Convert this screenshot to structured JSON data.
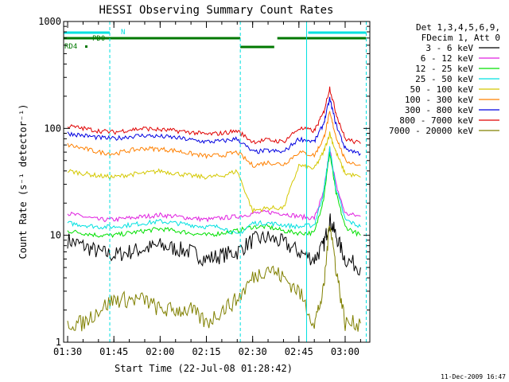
{
  "chart_data": {
    "type": "line",
    "title": "HESSI Observing Summary Count Rates",
    "xlabel": "Start Time (22-Jul-08 01:28:42)",
    "ylabel": "Count Rate (s⁻¹ detector⁻¹)",
    "y_scale": "log",
    "ylim": [
      1,
      1000
    ],
    "xlim": [
      "01:28:42",
      "03:08:00"
    ],
    "x_ticks": [
      "01:30",
      "01:45",
      "02:00",
      "02:15",
      "02:30",
      "02:45",
      "03:00"
    ],
    "y_ticks": [
      "1",
      "10",
      "100",
      "1000"
    ],
    "legend_header": [
      "Det 1,3,4,5,6,9,",
      "FDecim 1, Att 0"
    ],
    "legend_position": "right",
    "footer_date": "11-Dec-2009 16:47",
    "flag_labels": {
      "n": "N",
      "pd0": "PD0",
      "rd4": "RD4"
    },
    "flag_bars": {
      "saa_N_cyan": [
        [
          "01:28:42",
          "01:43:40"
        ],
        [
          "02:48:00",
          "03:06:50"
        ]
      ],
      "green_flags": [
        [
          "01:28:42",
          "02:26:00"
        ],
        [
          "02:26:00",
          "02:37:00"
        ],
        [
          "02:38:00",
          "03:06:50"
        ]
      ]
    },
    "vertical_markers": {
      "solid": [
        "01:28:42",
        "02:47:30"
      ],
      "dashed": [
        "01:43:40",
        "02:26:00",
        "03:06:50"
      ]
    },
    "series": [
      {
        "name": "3 - 6 keV",
        "color": "#000000",
        "x": [
          "01:30",
          "01:35",
          "01:40",
          "01:45",
          "01:50",
          "01:55",
          "02:00",
          "02:05",
          "02:10",
          "02:15",
          "02:20",
          "02:25",
          "02:30",
          "02:35",
          "02:40",
          "02:45",
          "02:50",
          "02:53",
          "02:55",
          "02:57",
          "03:00",
          "03:05"
        ],
        "values": [
          9,
          8,
          7,
          6.5,
          7,
          7.5,
          8,
          7.5,
          7,
          6,
          6.5,
          7,
          9,
          9.5,
          8.5,
          7,
          6,
          8,
          14,
          10,
          6,
          5
        ]
      },
      {
        "name": "6 - 12 keV",
        "color": "#e020e0",
        "x": [
          "01:30",
          "01:35",
          "01:40",
          "01:45",
          "01:50",
          "01:55",
          "02:00",
          "02:05",
          "02:10",
          "02:15",
          "02:20",
          "02:25",
          "02:30",
          "02:35",
          "02:40",
          "02:45",
          "02:50",
          "02:53",
          "02:55",
          "02:57",
          "03:00",
          "03:05"
        ],
        "values": [
          16,
          15,
          14,
          14,
          14.5,
          15,
          15.5,
          15,
          14.5,
          14,
          14.5,
          15,
          16,
          16.5,
          16,
          15,
          14.5,
          25,
          65,
          30,
          16,
          15
        ]
      },
      {
        "name": "12 - 25 keV",
        "color": "#00e000",
        "x": [
          "01:30",
          "01:35",
          "01:40",
          "01:45",
          "01:50",
          "01:55",
          "02:00",
          "02:05",
          "02:10",
          "02:15",
          "02:20",
          "02:25",
          "02:30",
          "02:35",
          "02:40",
          "02:45",
          "02:50",
          "02:53",
          "02:55",
          "02:57",
          "03:00",
          "03:05"
        ],
        "values": [
          11,
          10.5,
          10,
          10,
          10.5,
          11,
          11.5,
          11,
          10.5,
          10,
          10.5,
          11,
          12,
          12,
          11,
          10.5,
          10.5,
          22,
          60,
          25,
          12,
          10
        ]
      },
      {
        "name": "25 - 50 keV",
        "color": "#00e0e0",
        "x": [
          "01:30",
          "01:35",
          "01:40",
          "01:45",
          "01:50",
          "01:55",
          "02:00",
          "02:05",
          "02:10",
          "02:15",
          "02:20",
          "02:25",
          "02:30",
          "02:35",
          "02:40",
          "02:45",
          "02:50",
          "02:53",
          "02:55",
          "02:57",
          "03:00",
          "03:05"
        ],
        "values": [
          13,
          12.5,
          12,
          12,
          12.5,
          13,
          13.5,
          13,
          12.5,
          12,
          12,
          10,
          13,
          13,
          12.5,
          12,
          12.5,
          25,
          65,
          28,
          14,
          12
        ]
      },
      {
        "name": "50 - 100 keV",
        "color": "#d4c800",
        "x": [
          "01:30",
          "01:35",
          "01:40",
          "01:45",
          "01:50",
          "01:55",
          "02:00",
          "02:05",
          "02:10",
          "02:15",
          "02:20",
          "02:25",
          "02:30",
          "02:35",
          "02:40",
          "02:45",
          "02:50",
          "02:53",
          "02:55",
          "02:57",
          "03:00",
          "03:05"
        ],
        "values": [
          40,
          38,
          36,
          35,
          37,
          38,
          40,
          38,
          36,
          35,
          36,
          40,
          17,
          18,
          18,
          45,
          42,
          60,
          90,
          60,
          38,
          35
        ]
      },
      {
        "name": "100 - 300 keV",
        "color": "#ff8000",
        "x": [
          "01:30",
          "01:35",
          "01:40",
          "01:45",
          "01:50",
          "01:55",
          "02:00",
          "02:05",
          "02:10",
          "02:15",
          "02:20",
          "02:25",
          "02:30",
          "02:35",
          "02:40",
          "02:45",
          "02:50",
          "02:53",
          "02:55",
          "02:57",
          "03:00",
          "03:05"
        ],
        "values": [
          70,
          65,
          60,
          58,
          62,
          65,
          64,
          62,
          58,
          55,
          56,
          60,
          45,
          48,
          46,
          60,
          56,
          80,
          140,
          85,
          50,
          45
        ]
      },
      {
        "name": "300 - 800 keV",
        "color": "#0000e0",
        "x": [
          "01:30",
          "01:35",
          "01:40",
          "01:45",
          "01:50",
          "01:55",
          "02:00",
          "02:05",
          "02:10",
          "02:15",
          "02:20",
          "02:25",
          "02:30",
          "02:35",
          "02:40",
          "02:45",
          "02:50",
          "02:53",
          "02:55",
          "02:57",
          "03:00",
          "03:05"
        ],
        "values": [
          90,
          86,
          82,
          80,
          84,
          86,
          84,
          82,
          78,
          75,
          76,
          80,
          60,
          62,
          60,
          80,
          75,
          110,
          190,
          110,
          65,
          58
        ]
      },
      {
        "name": "800 - 7000 keV",
        "color": "#e00000",
        "x": [
          "01:30",
          "01:35",
          "01:40",
          "01:45",
          "01:50",
          "01:55",
          "02:00",
          "02:05",
          "02:10",
          "02:15",
          "02:20",
          "02:25",
          "02:30",
          "02:35",
          "02:40",
          "02:45",
          "02:50",
          "02:53",
          "02:55",
          "02:57",
          "03:00",
          "03:05"
        ],
        "values": [
          105,
          100,
          95,
          92,
          97,
          100,
          97,
          95,
          92,
          88,
          90,
          95,
          75,
          78,
          75,
          100,
          95,
          140,
          240,
          140,
          80,
          72
        ]
      },
      {
        "name": "7000 - 20000 keV",
        "color": "#808000",
        "x": [
          "01:30",
          "01:35",
          "01:40",
          "01:45",
          "01:50",
          "01:55",
          "02:00",
          "02:05",
          "02:10",
          "02:15",
          "02:20",
          "02:25",
          "02:30",
          "02:35",
          "02:40",
          "02:45",
          "02:50",
          "02:53",
          "02:55",
          "02:57",
          "03:00",
          "03:05"
        ],
        "values": [
          1.5,
          1.5,
          2,
          2.5,
          2.5,
          2.5,
          2,
          2,
          2,
          1.5,
          2,
          2.5,
          4,
          5,
          4,
          3,
          1.5,
          3,
          14,
          5,
          1.5,
          1.5
        ]
      }
    ]
  }
}
